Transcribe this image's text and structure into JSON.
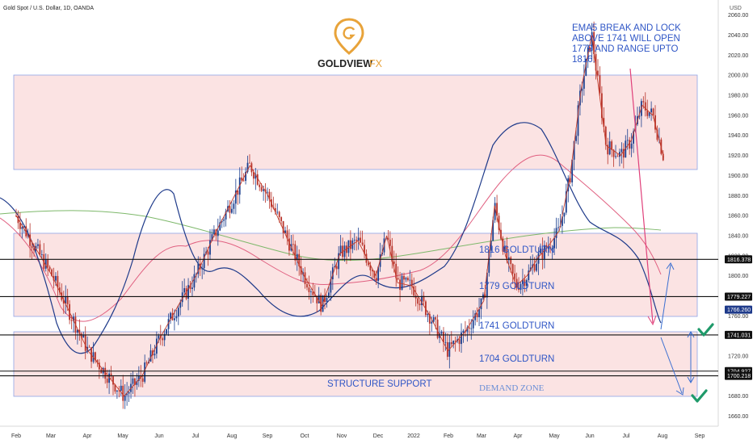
{
  "chart_title": "Gold Spot / U.S. Dollar, 1D, OANDA",
  "currency": "USD",
  "logo": {
    "brand": "GOLDVIEW",
    "suffix": "FX",
    "color": "#e8a33a"
  },
  "annotation": [
    "EMA5 BREAK AND LOCK",
    "ABOVE 1741 WILL OPEN",
    "1779 AND RANGE UPTO",
    "1816."
  ],
  "chart_data": {
    "type": "line",
    "title": "Gold Spot / U.S. Dollar, 1D, OANDA",
    "x_ticks": [
      "Feb",
      "Mar",
      "Apr",
      "May",
      "Jun",
      "Jul",
      "Aug",
      "Sep",
      "Oct",
      "Nov",
      "Dec",
      "2022",
      "Feb",
      "Mar",
      "Apr",
      "May",
      "Jun",
      "Jul",
      "Aug",
      "Sep"
    ],
    "y_ticks": [
      1660,
      1680,
      1700,
      1720,
      1740,
      1760,
      1780,
      1800,
      1820,
      1840,
      1860,
      1880,
      1900,
      1920,
      1940,
      1960,
      1980,
      2000,
      2020,
      2040,
      2060
    ],
    "ylim": [
      1650,
      2075
    ],
    "levels": [
      {
        "label": "1816 GOLDTURN",
        "value": 1816.378,
        "tag": "1816.378"
      },
      {
        "label": "1779 GOLDTURN",
        "value": 1779.227,
        "tag": "1779.227"
      },
      {
        "label": "1741 GOLDTURN",
        "value": 1741.031,
        "tag": "1741.031"
      },
      {
        "label": "1704 GOLDTURN",
        "value": 1704.927,
        "tag": "1704.927"
      },
      {
        "label": "",
        "value": 1700.218,
        "tag": "1700.218"
      }
    ],
    "current_price": {
      "value": 1766.26,
      "tag": "1766.260"
    },
    "zones": [
      {
        "label": "",
        "low": 1901,
        "high": 1995
      },
      {
        "label": "",
        "low": 1755,
        "high": 1840
      },
      {
        "label": "STRUCTURE SUPPORT",
        "low": 1677,
        "high": 1738
      }
    ],
    "demand_zone_label": "DEMAND ZONE",
    "series": [
      {
        "name": "",
        "kind": "price",
        "x": [
          0,
          1,
          2,
          3,
          3.5,
          4,
          4.5,
          5,
          5.5,
          6,
          6.5,
          7,
          8,
          8.5,
          9,
          9.5,
          10,
          10.3,
          10.6,
          11,
          11.5,
          12,
          12.5,
          13,
          13.3,
          13.6,
          13.9,
          14.2,
          14.5,
          14.8,
          15.1,
          15.4,
          15.7,
          16,
          16.4,
          16.8,
          17.1,
          17.4,
          17.7,
          18
        ],
        "y": [
          1860,
          1800,
          1725,
          1680,
          1700,
          1738,
          1770,
          1800,
          1840,
          1875,
          1910,
          1880,
          1800,
          1770,
          1822,
          1835,
          1800,
          1840,
          1793,
          1790,
          1760,
          1725,
          1745,
          1775,
          1870,
          1820,
          1790,
          1800,
          1818,
          1830,
          1845,
          1900,
          1985,
          2040,
          1930,
          1920,
          1935,
          1970,
          1960,
          1918
        ]
      }
    ]
  }
}
